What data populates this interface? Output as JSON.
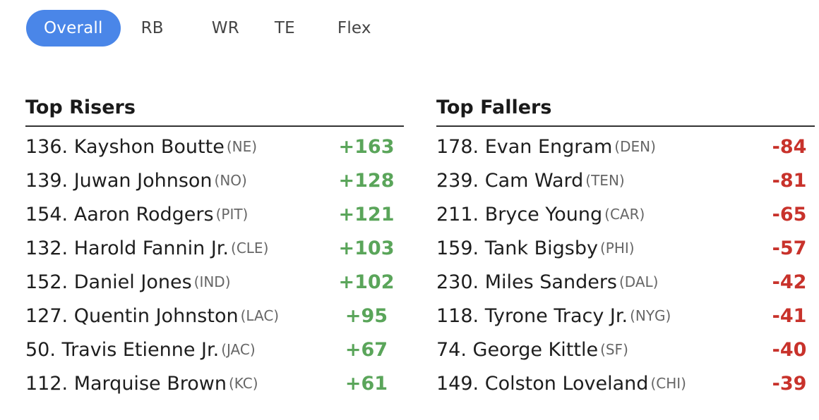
{
  "tabs": [
    {
      "label": "Overall",
      "active": true
    },
    {
      "label": "RB",
      "active": false
    },
    {
      "label": "WR",
      "active": false
    },
    {
      "label": "TE",
      "active": false
    },
    {
      "label": "Flex",
      "active": false
    }
  ],
  "risers": {
    "title": "Top Risers",
    "rows": [
      {
        "rank": "136.",
        "name": "Kayshon Boutte",
        "team": "(NE)",
        "change": "+163"
      },
      {
        "rank": "139.",
        "name": "Juwan Johnson",
        "team": "(NO)",
        "change": "+128"
      },
      {
        "rank": "154.",
        "name": "Aaron Rodgers",
        "team": "(PIT)",
        "change": "+121"
      },
      {
        "rank": "132.",
        "name": "Harold Fannin Jr.",
        "team": "(CLE)",
        "change": "+103"
      },
      {
        "rank": "152.",
        "name": "Daniel Jones",
        "team": "(IND)",
        "change": "+102"
      },
      {
        "rank": "127.",
        "name": "Quentin Johnston",
        "team": "(LAC)",
        "change": "+95"
      },
      {
        "rank": "50.",
        "name": "Travis Etienne Jr.",
        "team": "(JAC)",
        "change": "+67"
      },
      {
        "rank": "112.",
        "name": "Marquise Brown",
        "team": "(KC)",
        "change": "+61"
      }
    ]
  },
  "fallers": {
    "title": "Top Fallers",
    "rows": [
      {
        "rank": "178.",
        "name": "Evan Engram",
        "team": "(DEN)",
        "change": "-84"
      },
      {
        "rank": "239.",
        "name": "Cam Ward",
        "team": "(TEN)",
        "change": "-81"
      },
      {
        "rank": "211.",
        "name": "Bryce Young",
        "team": "(CAR)",
        "change": "-65"
      },
      {
        "rank": "159.",
        "name": "Tank Bigsby",
        "team": "(PHI)",
        "change": "-57"
      },
      {
        "rank": "230.",
        "name": "Miles Sanders",
        "team": "(DAL)",
        "change": "-42"
      },
      {
        "rank": "118.",
        "name": "Tyrone Tracy Jr.",
        "team": "(NYG)",
        "change": "-41"
      },
      {
        "rank": "74.",
        "name": "George Kittle",
        "team": "(SF)",
        "change": "-40"
      },
      {
        "rank": "149.",
        "name": "Colston Loveland",
        "team": "(CHI)",
        "change": "-39"
      }
    ]
  },
  "colors": {
    "active_tab": "#4a86e8",
    "riser": "#5aa55a",
    "faller": "#c8322b"
  }
}
